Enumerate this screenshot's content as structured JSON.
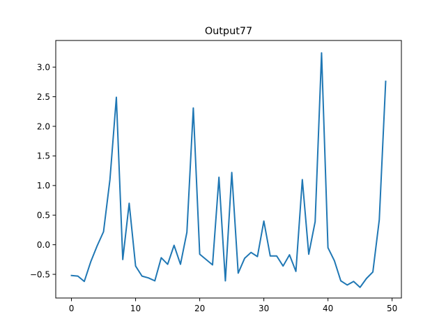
{
  "chart_data": {
    "type": "line",
    "title": "Output77",
    "xlabel": "",
    "ylabel": "",
    "xlim": [
      -2.45,
      51.45
    ],
    "ylim": [
      -0.9,
      3.45
    ],
    "xticks": [
      0,
      10,
      20,
      30,
      40,
      50
    ],
    "xtick_labels": [
      "0",
      "10",
      "20",
      "30",
      "40",
      "50"
    ],
    "yticks": [
      -0.5,
      0.0,
      0.5,
      1.0,
      1.5,
      2.0,
      2.5,
      3.0
    ],
    "ytick_labels": [
      "−0.5",
      "0.0",
      "0.5",
      "1.0",
      "1.5",
      "2.0",
      "2.5",
      "3.0"
    ],
    "grid": false,
    "legend": "none",
    "series": [
      {
        "color": "#1f77b4",
        "x": [
          0,
          1,
          2,
          3,
          4,
          5,
          6,
          7,
          8,
          9,
          10,
          11,
          12,
          13,
          14,
          15,
          16,
          17,
          18,
          19,
          20,
          21,
          22,
          23,
          24,
          25,
          26,
          27,
          28,
          29,
          30,
          31,
          32,
          33,
          34,
          35,
          36,
          37,
          38,
          39,
          40,
          41,
          42,
          43,
          44,
          45,
          46,
          47,
          48,
          49
        ],
        "values": [
          -0.52,
          -0.53,
          -0.62,
          -0.29,
          -0.02,
          0.22,
          1.1,
          2.49,
          -0.25,
          0.7,
          -0.36,
          -0.53,
          -0.56,
          -0.61,
          -0.22,
          -0.33,
          -0.01,
          -0.33,
          0.21,
          2.31,
          -0.16,
          -0.25,
          -0.34,
          1.14,
          -0.61,
          1.22,
          -0.48,
          -0.23,
          -0.13,
          -0.2,
          0.4,
          -0.19,
          -0.19,
          -0.36,
          -0.17,
          -0.45,
          1.1,
          -0.16,
          0.39,
          3.24,
          -0.05,
          -0.27,
          -0.61,
          -0.68,
          -0.62,
          -0.72,
          -0.57,
          -0.46,
          0.42,
          2.76
        ]
      }
    ]
  }
}
